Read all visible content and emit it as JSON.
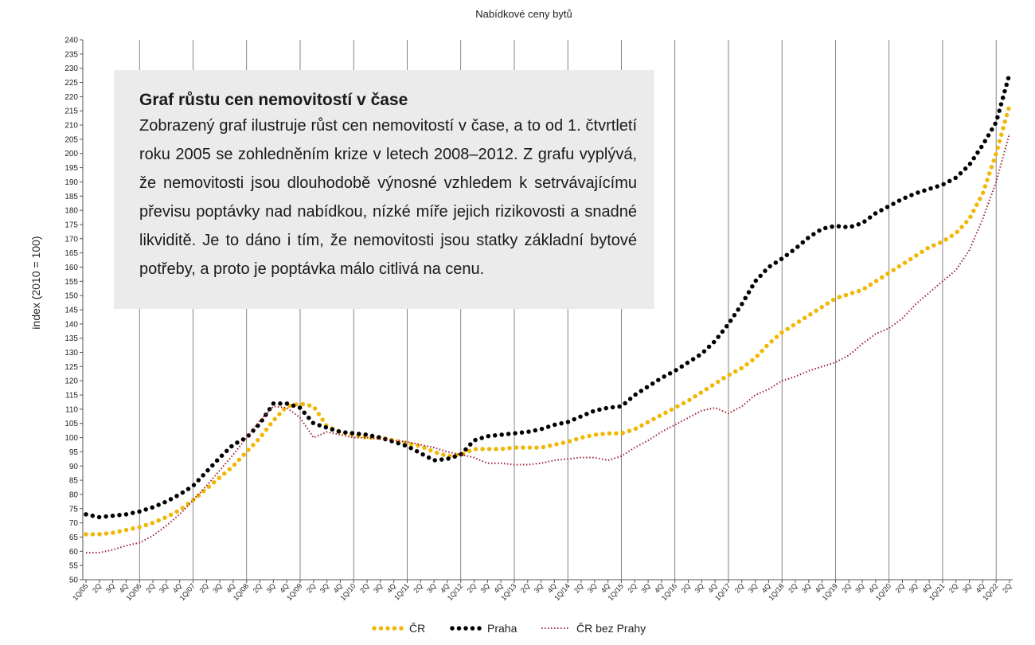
{
  "chart_data": {
    "type": "line",
    "title": "Nabídkové ceny bytů",
    "y_label": "index (2010 = 100)",
    "annotation": {
      "heading": "Graf růstu cen nemovitostí v čase",
      "text": "Zobrazený graf ilustruje růst cen nemovitostí v čase, a to od 1. čtvrtletí roku 2005 se zohledněním krize v letech 2008–2012. Z grafu vyplývá, že nemovitosti jsou dlouhodobě výnosné vzhledem k setrvávajícímu převisu poptávky nad nabídkou, nízké míře jejich rizikovosti a snadné likviditě. Je to dáno i tím, že nemovitosti jsou statky základní bytové potřeby, a proto je poptávka málo citlivá na cenu."
    },
    "categories": [
      "1Q/05",
      "2Q",
      "3Q",
      "4Q",
      "1Q/06",
      "2Q",
      "3Q",
      "4Q",
      "1Q/07",
      "2Q",
      "3Q",
      "4Q",
      "1Q/08",
      "2Q",
      "3Q",
      "4Q",
      "1Q/09",
      "2Q",
      "3Q",
      "4Q",
      "1Q/10",
      "2Q",
      "3Q",
      "4Q",
      "1Q/11",
      "2Q",
      "3Q",
      "4Q",
      "1Q/12",
      "2Q",
      "3Q",
      "4Q",
      "1Q/13",
      "2Q",
      "3Q",
      "4Q",
      "1Q/14",
      "2Q",
      "3Q",
      "4Q",
      "1Q/15",
      "2Q",
      "3Q",
      "4Q",
      "1Q/16",
      "2Q",
      "3Q",
      "4Q",
      "1Q/17",
      "2Q",
      "3Q",
      "4Q",
      "1Q/18",
      "2Q",
      "3Q",
      "4Q",
      "1Q/19",
      "2Q",
      "3Q",
      "4Q",
      "1Q/20",
      "2Q",
      "3Q",
      "4Q",
      "1Q/21",
      "2Q",
      "3Q",
      "4Q",
      "1Q/22",
      "2Q"
    ],
    "series": [
      {
        "name": "ČR",
        "color": "#f2b705",
        "style": "dots",
        "values": [
          66,
          66,
          66.5,
          67.5,
          68.5,
          70,
          72,
          74.5,
          78,
          82,
          86,
          90,
          95,
          100,
          106,
          111,
          112,
          111,
          104,
          102,
          101,
          100,
          100,
          99,
          98,
          97,
          95,
          93.5,
          94,
          96,
          96,
          96,
          96.5,
          96.5,
          96.5,
          97.5,
          98.5,
          100,
          101,
          101.5,
          101.5,
          103,
          105.5,
          108,
          110.5,
          113,
          116,
          119,
          122,
          124.5,
          128,
          133,
          137,
          140,
          143,
          146,
          149,
          150.5,
          152,
          155,
          158,
          161,
          164,
          167,
          169,
          172,
          177,
          186,
          200,
          217
        ]
      },
      {
        "name": "Praha",
        "color": "#000000",
        "style": "dots",
        "values": [
          73,
          72,
          72.5,
          73,
          74,
          75.5,
          77.5,
          80,
          83,
          88,
          93,
          97.5,
          100,
          105,
          112,
          112,
          110.5,
          105,
          103.5,
          102,
          101.5,
          101,
          100,
          98.5,
          97,
          94.5,
          92,
          92.5,
          94,
          99,
          100.5,
          101,
          101.5,
          102,
          103,
          104.5,
          105.5,
          107.5,
          109.5,
          110.5,
          111,
          115,
          118,
          121,
          123.5,
          126.5,
          129.5,
          134,
          140,
          147,
          155,
          160,
          163,
          166.5,
          170.5,
          173.5,
          174.5,
          174,
          175.5,
          179,
          181.5,
          184,
          186,
          187.5,
          189,
          191.5,
          196,
          203,
          211,
          228
        ]
      },
      {
        "name": "ČR bez Prahy",
        "color": "#9b2335",
        "style": "dotted",
        "values": [
          59.5,
          59.5,
          60.5,
          62,
          63,
          65.5,
          69,
          73,
          78,
          83,
          88.5,
          94,
          100,
          106,
          111,
          110.5,
          107,
          100,
          102,
          101,
          100,
          100,
          99.5,
          99,
          98.5,
          97.5,
          96.5,
          95,
          94,
          93,
          91,
          91,
          90.5,
          90.5,
          91,
          92,
          92.5,
          93,
          93,
          92,
          93.5,
          96.5,
          99,
          102,
          104.5,
          107,
          109.5,
          110.5,
          108.5,
          111,
          115,
          117,
          120,
          121.5,
          123.5,
          125,
          126.5,
          129,
          133,
          136.5,
          138.5,
          142,
          147,
          151,
          155,
          159,
          166,
          177,
          190,
          207
        ]
      }
    ],
    "ylim": [
      50,
      240
    ],
    "yticks": [
      50,
      55,
      60,
      65,
      70,
      75,
      80,
      85,
      90,
      95,
      100,
      105,
      110,
      115,
      120,
      125,
      130,
      135,
      140,
      145,
      150,
      155,
      160,
      165,
      170,
      175,
      180,
      185,
      190,
      195,
      200,
      205,
      210,
      215,
      220,
      225,
      230,
      235,
      240
    ],
    "xgrid": true,
    "legend": "bottom"
  }
}
